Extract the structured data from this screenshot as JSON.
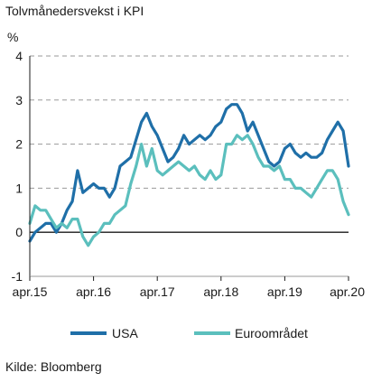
{
  "title": "Tolvmånedersvekst i KPI",
  "unit": "%",
  "source": "Kilde: Bloomberg",
  "chart_data": {
    "type": "line",
    "title": "Tolvmånedersvekst i KPI",
    "ylabel": "%",
    "xlabel": "",
    "ylim": [
      -1,
      4
    ],
    "xlim": [
      0,
      60
    ],
    "yticks": [
      -1,
      0,
      1,
      2,
      3,
      4
    ],
    "xtick_positions": [
      0,
      12,
      24,
      36,
      48,
      60
    ],
    "xtick_labels": [
      "apr.15",
      "apr.16",
      "apr.17",
      "apr.18",
      "apr.19",
      "apr.20"
    ],
    "grid": "horizontal dashed",
    "legend_position": "bottom",
    "x": [
      0,
      1,
      2,
      3,
      4,
      5,
      6,
      7,
      8,
      9,
      10,
      11,
      12,
      13,
      14,
      15,
      16,
      17,
      18,
      19,
      20,
      21,
      22,
      23,
      24,
      25,
      26,
      27,
      28,
      29,
      30,
      31,
      32,
      33,
      34,
      35,
      36,
      37,
      38,
      39,
      40,
      41,
      42,
      43,
      44,
      45,
      46,
      47,
      48,
      49,
      50,
      51,
      52,
      53,
      54,
      55,
      56,
      57,
      58,
      59,
      60
    ],
    "series": [
      {
        "name": "USA",
        "color": "#1f6fa8",
        "values": [
          -0.2,
          0.0,
          0.1,
          0.2,
          0.2,
          0.0,
          0.2,
          0.5,
          0.7,
          1.4,
          0.9,
          1.0,
          1.1,
          1.0,
          1.0,
          0.8,
          1.0,
          1.5,
          1.6,
          1.7,
          2.1,
          2.5,
          2.7,
          2.4,
          2.2,
          1.9,
          1.6,
          1.7,
          1.9,
          2.2,
          2.0,
          2.1,
          2.2,
          2.1,
          2.2,
          2.4,
          2.5,
          2.8,
          2.9,
          2.9,
          2.7,
          2.3,
          2.5,
          2.2,
          1.9,
          1.6,
          1.5,
          1.6,
          1.9,
          2.0,
          1.8,
          1.7,
          1.8,
          1.7,
          1.7,
          1.8,
          2.1,
          2.3,
          2.5,
          2.3,
          1.5
        ]
      },
      {
        "name": "Euroområdet",
        "color": "#5bbfbd",
        "values": [
          0.2,
          0.6,
          0.5,
          0.5,
          0.3,
          0.1,
          0.2,
          0.1,
          0.3,
          0.3,
          -0.1,
          -0.3,
          -0.1,
          0.0,
          0.2,
          0.2,
          0.4,
          0.5,
          0.6,
          1.1,
          1.5,
          2.0,
          1.5,
          1.9,
          1.4,
          1.3,
          1.4,
          1.5,
          1.6,
          1.5,
          1.4,
          1.5,
          1.3,
          1.2,
          1.4,
          1.2,
          1.3,
          2.0,
          2.0,
          2.2,
          2.1,
          2.2,
          2.0,
          1.7,
          1.5,
          1.5,
          1.4,
          1.5,
          1.2,
          1.2,
          1.0,
          1.0,
          0.9,
          0.8,
          1.0,
          1.2,
          1.4,
          1.4,
          1.2,
          0.7,
          0.4
        ]
      }
    ]
  }
}
